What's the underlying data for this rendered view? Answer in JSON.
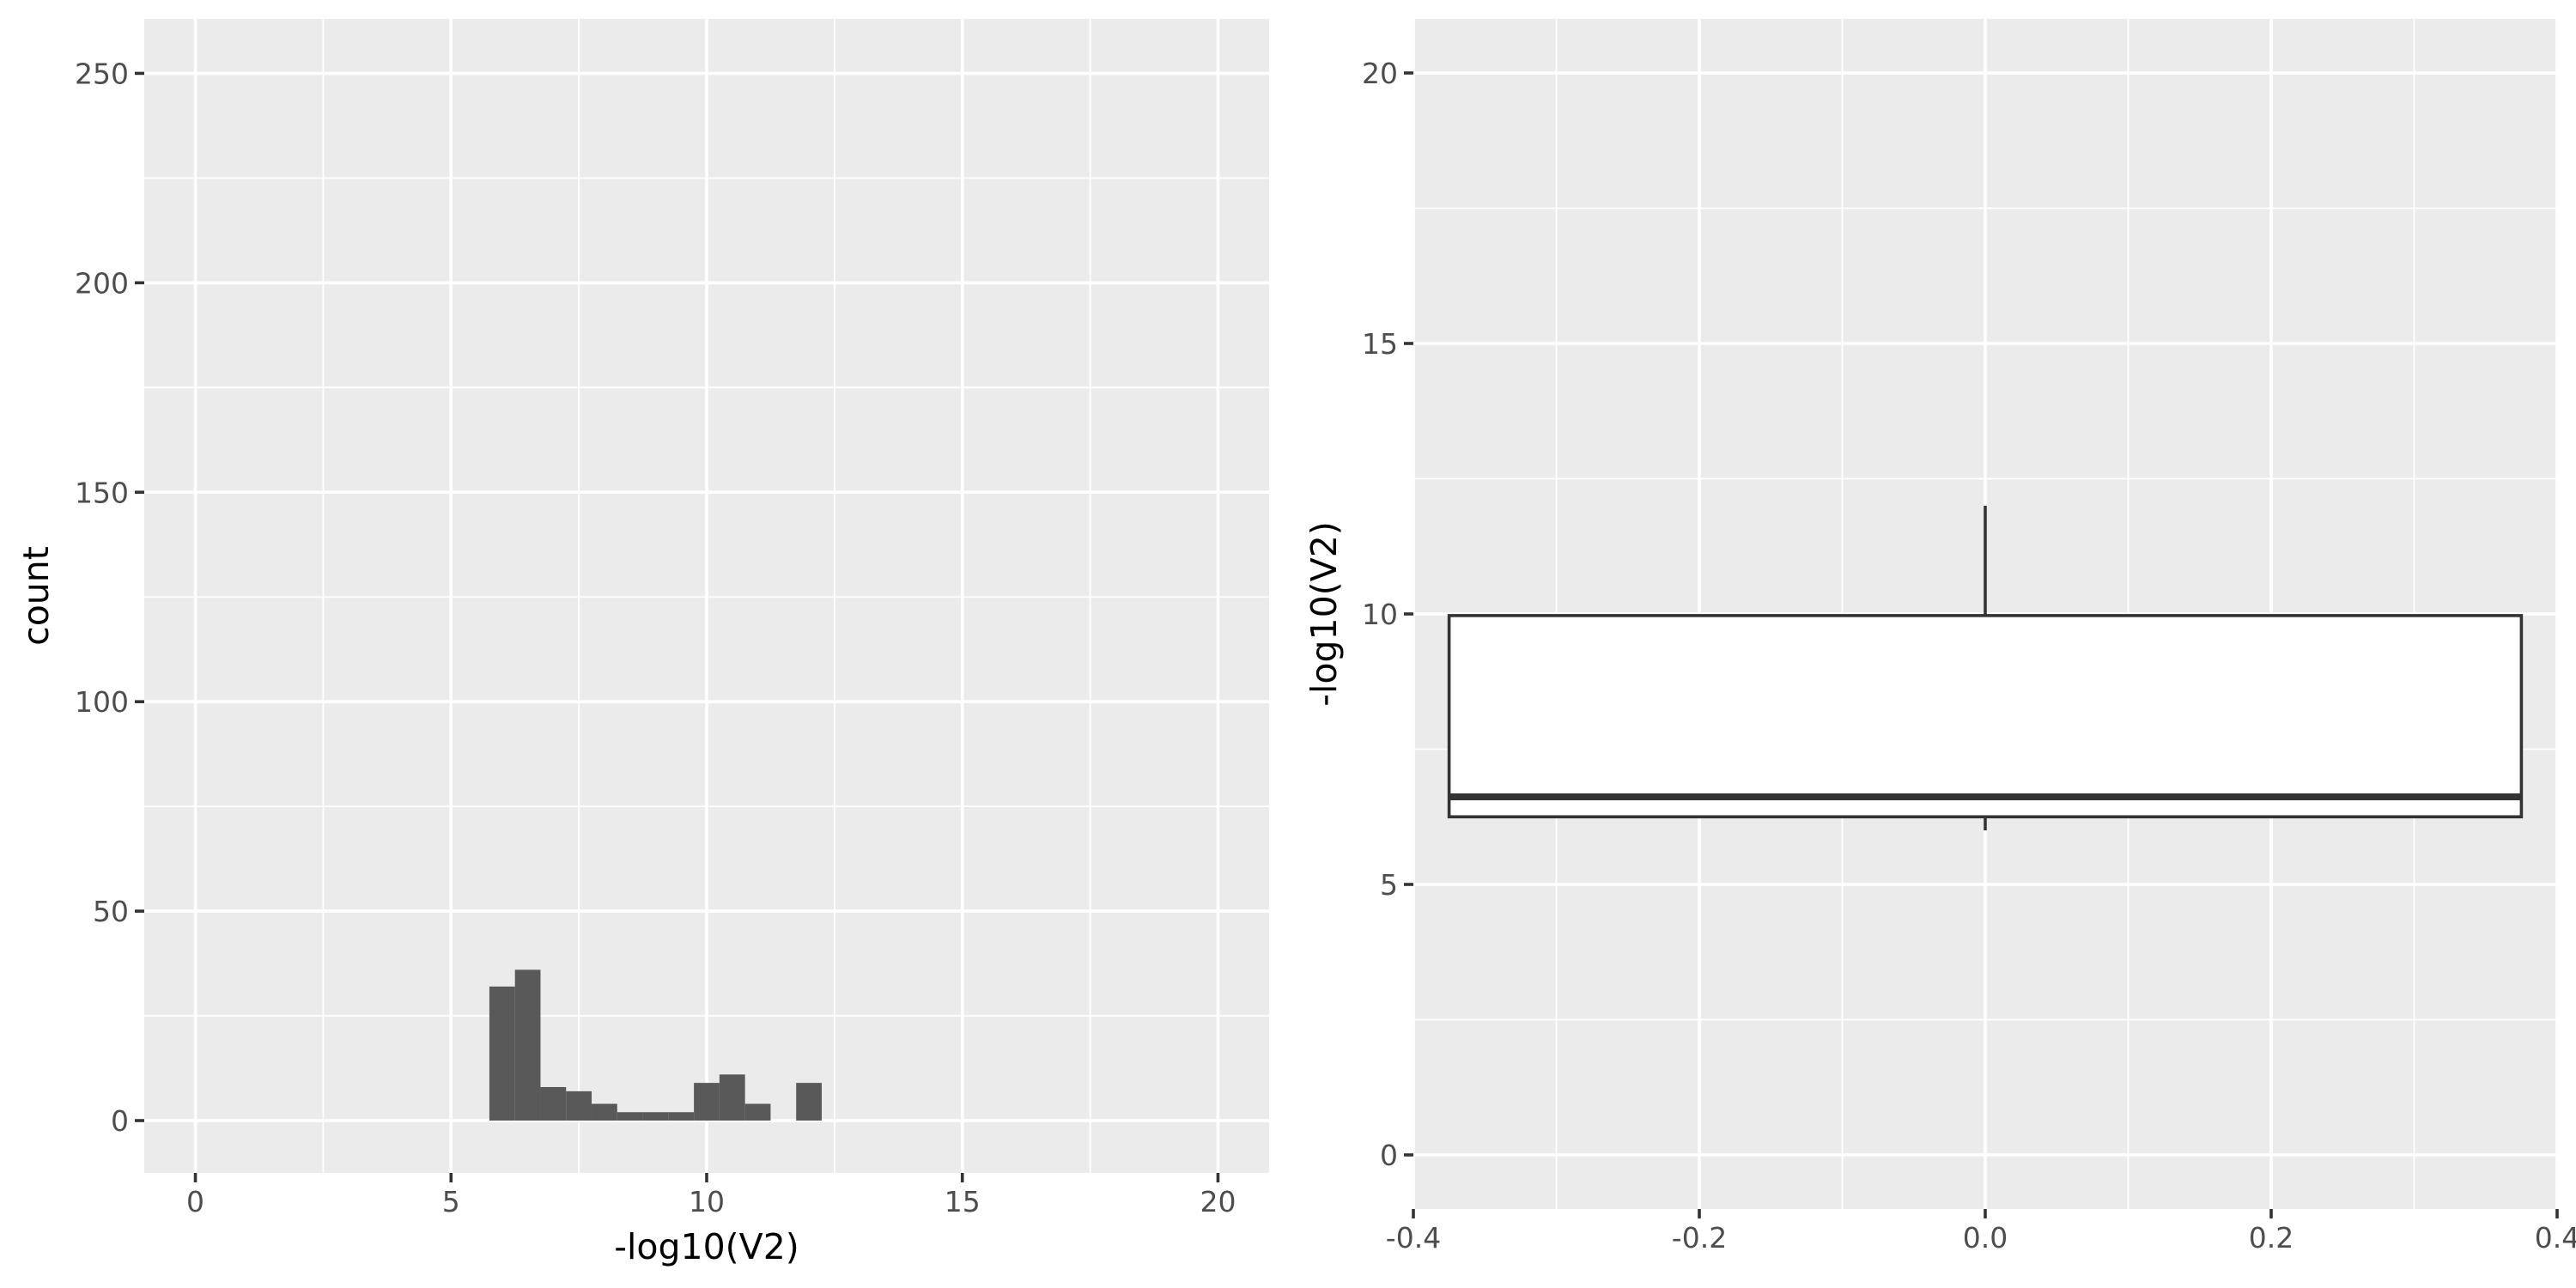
{
  "chart_data": [
    {
      "type": "bar",
      "subtype": "histogram",
      "xlabel": "-log10(V2)",
      "ylabel": "count",
      "xlim": [
        -1,
        21
      ],
      "ylim": [
        -12.5,
        263
      ],
      "xticks": [
        0,
        5,
        10,
        15,
        20
      ],
      "xtick_labels": [
        "0",
        "5",
        "10",
        "15",
        "20"
      ],
      "yticks": [
        0,
        50,
        100,
        150,
        200,
        250
      ],
      "ytick_labels": [
        "0",
        "50",
        "100",
        "150",
        "200",
        "250"
      ],
      "grid": true,
      "bars": [
        {
          "x0": 5.75,
          "x1": 6.25,
          "count": 32
        },
        {
          "x0": 6.25,
          "x1": 6.75,
          "count": 36
        },
        {
          "x0": 6.75,
          "x1": 7.25,
          "count": 8
        },
        {
          "x0": 7.25,
          "x1": 7.75,
          "count": 7
        },
        {
          "x0": 7.75,
          "x1": 8.25,
          "count": 4
        },
        {
          "x0": 8.25,
          "x1": 8.75,
          "count": 2
        },
        {
          "x0": 8.75,
          "x1": 9.25,
          "count": 2
        },
        {
          "x0": 9.25,
          "x1": 9.75,
          "count": 2
        },
        {
          "x0": 9.75,
          "x1": 10.25,
          "count": 9
        },
        {
          "x0": 10.25,
          "x1": 10.75,
          "count": 11
        },
        {
          "x0": 10.75,
          "x1": 11.25,
          "count": 4
        },
        {
          "x0": 11.25,
          "x1": 11.75,
          "count": 0
        },
        {
          "x0": 11.75,
          "x1": 12.25,
          "count": 9
        }
      ]
    },
    {
      "type": "boxplot",
      "ylabel": "-log10(V2)",
      "xlim": [
        -0.4,
        0.4
      ],
      "ylim": [
        -1,
        21
      ],
      "xticks": [
        -0.4,
        -0.2,
        0.0,
        0.2,
        0.4
      ],
      "xtick_labels": [
        "-0.4",
        "-0.2",
        "0.0",
        "0.2",
        "0.4"
      ],
      "yticks": [
        0,
        5,
        10,
        15,
        20
      ],
      "ytick_labels": [
        "0",
        "5",
        "10",
        "15",
        "20"
      ],
      "grid": true,
      "box": {
        "x": 0,
        "width": 0.75,
        "lower_whisker": 6.0,
        "q1": 6.25,
        "median": 6.62,
        "q3": 9.97,
        "upper_whisker": 12.0
      }
    }
  ]
}
